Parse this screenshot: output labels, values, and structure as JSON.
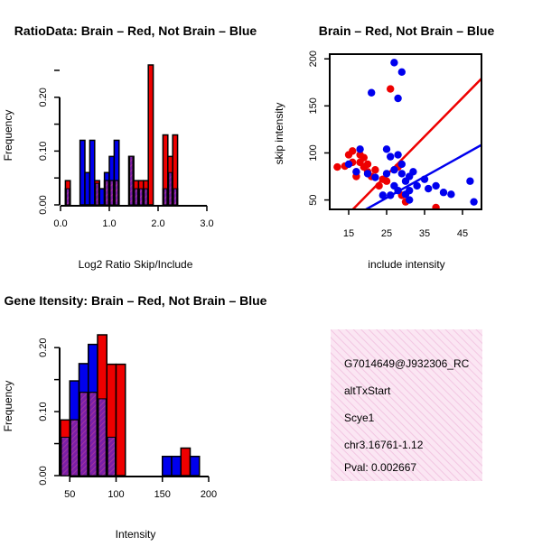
{
  "chart_data": [
    {
      "type": "bar",
      "title": "RatioData: Brain – Red, Not Brain – Blue",
      "xlabel": "Log2 Ratio Skip/Include",
      "ylabel": "Frequency",
      "xlim": [
        0,
        3
      ],
      "ylim": [
        0,
        0.26
      ],
      "xticks": [
        "0.0",
        "1.0",
        "2.0",
        "3.0"
      ],
      "xtick_values": [
        0,
        1,
        2,
        3
      ],
      "yticks": [
        "0.00",
        "0.10",
        "0.20"
      ],
      "ytick_values": [
        0,
        0.1,
        0.2
      ],
      "bin_width": 0.1,
      "bin_starts": [
        0.1,
        0.2,
        0.3,
        0.4,
        0.5,
        0.6,
        0.7,
        0.8,
        0.9,
        1.0,
        1.1,
        1.2,
        1.3,
        1.4,
        1.5,
        1.6,
        1.7,
        1.8,
        1.9,
        2.0,
        2.1,
        2.2,
        2.3,
        2.4,
        2.5,
        2.6,
        2.7,
        2.8,
        2.9
      ],
      "series": [
        {
          "name": "Not Brain",
          "color": "#0000ee",
          "values": [
            0.03,
            0.0,
            0.0,
            0.12,
            0.06,
            0.12,
            0.04,
            0.03,
            0.06,
            0.09,
            0.12,
            0.0,
            0.0,
            0.09,
            0.03,
            0.03,
            0.03,
            0.0,
            0.0,
            0.0,
            0.03,
            0.06,
            0.03,
            0.0,
            0.0,
            0.0,
            0.0,
            0.0,
            0.0
          ]
        },
        {
          "name": "Brain",
          "color": "#ee0000",
          "values": [
            0.045,
            0.0,
            0.0,
            0.0,
            0.0,
            0.0,
            0.045,
            0.0,
            0.045,
            0.045,
            0.045,
            0.0,
            0.0,
            0.09,
            0.045,
            0.045,
            0.045,
            0.26,
            0.0,
            0.0,
            0.13,
            0.09,
            0.13,
            0.0,
            0.0,
            0.0,
            0.0,
            0.0,
            0.0
          ]
        }
      ]
    },
    {
      "type": "scatter",
      "title": "Brain – Red, Not Brain – Blue",
      "xlabel": "include intensity",
      "ylabel": "skip intensity",
      "xlim": [
        10,
        50
      ],
      "ylim": [
        40,
        205
      ],
      "xticks": [
        "15",
        "25",
        "35",
        "45"
      ],
      "xtick_values": [
        15,
        25,
        35,
        45
      ],
      "yticks": [
        "50",
        "100",
        "150",
        "200"
      ],
      "ytick_values": [
        50,
        100,
        150,
        200
      ],
      "series": [
        {
          "name": "Brain",
          "color": "#ee0000",
          "x": [
            12,
            14,
            15,
            16,
            16,
            17,
            17,
            18,
            18,
            19,
            19,
            20,
            20,
            21,
            22,
            23,
            25,
            26,
            28,
            30,
            38,
            29,
            24
          ],
          "y": [
            85,
            86,
            98,
            102,
            90,
            75,
            80,
            98,
            90,
            95,
            85,
            88,
            80,
            75,
            82,
            65,
            70,
            168,
            85,
            48,
            42,
            55,
            72
          ],
          "fit": {
            "intercept": -26,
            "slope": 4.1
          }
        },
        {
          "name": "Not Brain",
          "color": "#0000ee",
          "x": [
            15,
            17,
            18,
            20,
            21,
            24,
            25,
            25,
            26,
            27,
            27,
            28,
            28,
            28,
            29,
            29,
            30,
            30,
            31,
            31,
            32,
            33,
            35,
            36,
            38,
            40,
            42,
            47,
            48,
            27,
            29,
            22,
            26,
            31
          ],
          "y": [
            88,
            80,
            104,
            78,
            164,
            55,
            104,
            78,
            55,
            196,
            82,
            98,
            60,
            158,
            186,
            88,
            70,
            56,
            60,
            75,
            80,
            65,
            72,
            62,
            65,
            58,
            56,
            70,
            48,
            65,
            78,
            74,
            96,
            50
          ],
          "fit": {
            "intercept": -4,
            "slope": 2.25
          }
        }
      ]
    },
    {
      "type": "bar",
      "title": "Gene Itensity: Brain – Red, Not Brain – Blue",
      "xlabel": "Intensity",
      "ylabel": "Frequency",
      "xlim": [
        40,
        200
      ],
      "ylim": [
        0,
        0.22
      ],
      "xticks": [
        "50",
        "100",
        "150",
        "200"
      ],
      "xtick_values": [
        50,
        100,
        150,
        200
      ],
      "yticks": [
        "0.00",
        "0.10",
        "0.20"
      ],
      "ytick_values": [
        0,
        0.1,
        0.2
      ],
      "bin_width": 10,
      "bin_starts": [
        40,
        50,
        60,
        70,
        80,
        90,
        100,
        110,
        120,
        130,
        140,
        150,
        160,
        170,
        180
      ],
      "series": [
        {
          "name": "Not Brain",
          "color": "#0000ee",
          "values": [
            0.06,
            0.148,
            0.175,
            0.205,
            0.12,
            0.06,
            0.0,
            0.0,
            0.0,
            0.0,
            0.0,
            0.03,
            0.03,
            0.0,
            0.03
          ]
        },
        {
          "name": "Brain",
          "color": "#ee0000",
          "values": [
            0.087,
            0.087,
            0.13,
            0.13,
            0.22,
            0.174,
            0.174,
            0.0,
            0.0,
            0.0,
            0.0,
            0.0,
            0.0,
            0.043,
            0.0
          ]
        }
      ]
    }
  ],
  "info_panel": {
    "probe_id": "G7014649@J932306_RC",
    "event_type": "altTxStart",
    "gene": "Scye1",
    "location": "chr3.16761-1.12",
    "pval": "Pval: 0.002667",
    "pval_color": "#aa0000",
    "background": "#f9dcef"
  }
}
